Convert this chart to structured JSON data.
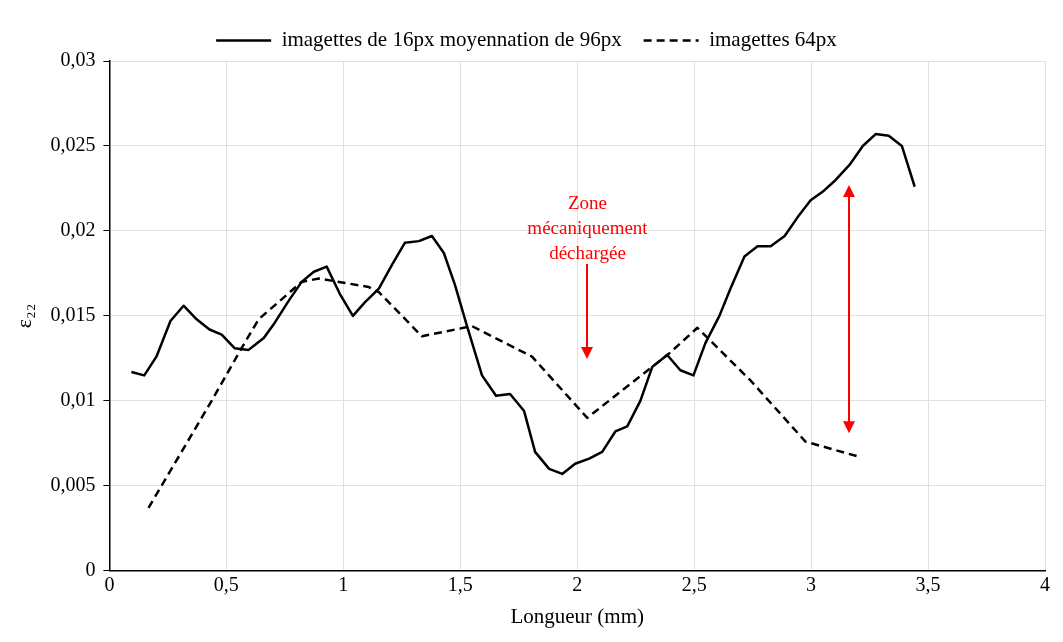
{
  "chart_data": {
    "type": "line",
    "xlabel": "Longueur (mm)",
    "ylabel": "ε₂₂",
    "xlim": [
      0,
      4
    ],
    "xticks": [
      0,
      {
        "value": 0.5,
        "label": "0,5"
      },
      1,
      {
        "value": 1.5,
        "label": "1,5"
      },
      2,
      {
        "value": 2.5,
        "label": "2,5"
      },
      3,
      {
        "value": 3.5,
        "label": "3,5"
      },
      4
    ],
    "ylim": [
      0,
      0.03
    ],
    "yticks": [
      0,
      {
        "value": 0.005,
        "label": "0,005"
      },
      {
        "value": 0.01,
        "label": "0,01"
      },
      {
        "value": 0.015,
        "label": "0,015"
      },
      {
        "value": 0.02,
        "label": "0,02"
      },
      {
        "value": 0.025,
        "label": "0,025"
      },
      {
        "value": 0.03,
        "label": "0,03"
      }
    ],
    "grid": true,
    "legend": "top",
    "marker": "none",
    "annotations": [
      "Zone mécaniquement déchargée"
    ],
    "series": [
      {
        "name": "imagettes de 16px moyennation de 96px",
        "color": "#000000",
        "line_style": "solid",
        "x": [
          0.094,
          0.149,
          0.201,
          0.261,
          0.317,
          0.373,
          0.428,
          0.48,
          0.535,
          0.595,
          0.66,
          0.707,
          0.767,
          0.822,
          0.874,
          0.929,
          0.985,
          1.041,
          1.092,
          1.152,
          1.208,
          1.263,
          1.323,
          1.379,
          1.43,
          1.478,
          1.529,
          1.593,
          1.653,
          1.713,
          1.773,
          1.82,
          1.88,
          1.936,
          1.991,
          2.051,
          2.107,
          2.163,
          2.214,
          2.27,
          2.321,
          2.385,
          2.441,
          2.497,
          2.548,
          2.608,
          2.655,
          2.715,
          2.771,
          2.827,
          2.887,
          2.942,
          2.998,
          3.049,
          3.105,
          3.165,
          3.221,
          3.276,
          3.332,
          3.388,
          3.443
        ],
        "values": [
          0.0117,
          0.0115,
          0.0126,
          0.0147,
          0.0156,
          0.0148,
          0.0142,
          0.0139,
          0.0131,
          0.013,
          0.0137,
          0.0146,
          0.0159,
          0.017,
          0.0176,
          0.0179,
          0.0163,
          0.015,
          0.0158,
          0.0166,
          0.018,
          0.0193,
          0.0194,
          0.0197,
          0.0187,
          0.0168,
          0.0144,
          0.0115,
          0.0103,
          0.0104,
          0.0094,
          0.007,
          0.006,
          0.0057,
          0.0063,
          0.0066,
          0.007,
          0.0082,
          0.0085,
          0.01,
          0.012,
          0.0127,
          0.0118,
          0.0115,
          0.0134,
          0.015,
          0.0166,
          0.0185,
          0.0191,
          0.0191,
          0.0197,
          0.0208,
          0.0218,
          0.0223,
          0.023,
          0.0239,
          0.025,
          0.0257,
          0.0256,
          0.025,
          0.0226
        ]
      },
      {
        "name": "imagettes 64px",
        "color": "#000000",
        "line_style": "dashed",
        "x": [
          0.167,
          0.437,
          0.565,
          0.638,
          0.822,
          0.895,
          1.109,
          1.152,
          1.336,
          1.55,
          1.807,
          2.043,
          2.394,
          2.514,
          2.741,
          2.976,
          3.208
        ],
        "values": [
          0.0037,
          0.01,
          0.0131,
          0.0148,
          0.017,
          0.0172,
          0.0167,
          0.0164,
          0.0138,
          0.0144,
          0.0126,
          0.009,
          0.0128,
          0.0143,
          0.0112,
          0.0076,
          0.0067
        ]
      }
    ]
  }
}
